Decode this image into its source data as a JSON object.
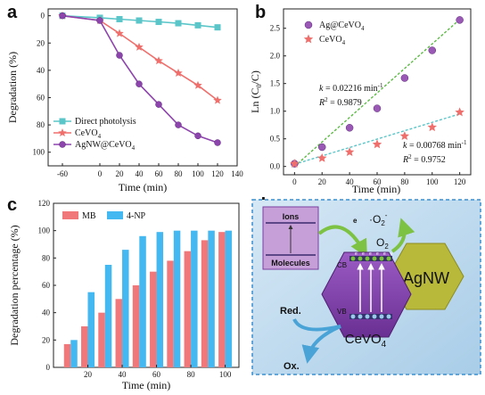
{
  "panels": {
    "a": {
      "letter": "a"
    },
    "b": {
      "letter": "b"
    },
    "c": {
      "letter": "c"
    },
    "d": {
      "letter": "d"
    }
  },
  "chart_data": [
    {
      "id": "a",
      "type": "line",
      "xlabel": "Time (min)",
      "ylabel": "Degradation (%)",
      "x_ticks": [
        -60,
        0,
        20,
        40,
        60,
        80,
        100,
        120,
        140
      ],
      "y_ticks": [
        0,
        20,
        40,
        60,
        80,
        100
      ],
      "y_inverted": true,
      "legend": "bottom-left",
      "series": [
        {
          "name": "Direct photolysis",
          "marker": "square",
          "color": "#5bc6c9",
          "x": [
            -60,
            0,
            20,
            40,
            60,
            80,
            100,
            120
          ],
          "y": [
            0,
            1.5,
            2.5,
            3.5,
            4.5,
            5.5,
            7,
            8.5
          ]
        },
        {
          "name": "CeVO4",
          "marker": "star",
          "color": "#ef6f6c",
          "x": [
            -60,
            0,
            20,
            40,
            60,
            80,
            100,
            120
          ],
          "y": [
            0,
            3.5,
            13,
            23,
            33,
            42,
            51,
            62
          ]
        },
        {
          "name": "AgNW@CeVO4",
          "marker": "circle",
          "color": "#8e44ad",
          "x": [
            -60,
            0,
            20,
            40,
            60,
            80,
            100,
            120
          ],
          "y": [
            0,
            3.5,
            29,
            50,
            65,
            80,
            88,
            93
          ]
        }
      ]
    },
    {
      "id": "b",
      "type": "scatter",
      "xlabel": "Time (min)",
      "ylabel": "Ln (C0/C)",
      "x_ticks": [
        0,
        20,
        40,
        60,
        80,
        100,
        120
      ],
      "y_ticks": [
        0.0,
        0.5,
        1.0,
        1.5,
        2.0,
        2.5
      ],
      "legend": "top-left",
      "series": [
        {
          "name": "Ag@CeVO4",
          "marker": "circle",
          "color": "#9b59b6",
          "x": [
            0,
            20,
            40,
            60,
            80,
            100,
            120
          ],
          "y": [
            0.05,
            0.35,
            0.7,
            1.05,
            1.6,
            2.1,
            2.65
          ],
          "fit": {
            "x": [
              0,
              120
            ],
            "y": [
              0.0,
              2.66
            ],
            "color": "#5dbb46"
          }
        },
        {
          "name": "CeVO4",
          "marker": "star",
          "color": "#ef6f6c",
          "x": [
            0,
            20,
            40,
            60,
            80,
            100,
            120
          ],
          "y": [
            0.05,
            0.15,
            0.26,
            0.4,
            0.55,
            0.71,
            0.98
          ],
          "fit": {
            "x": [
              0,
              120
            ],
            "y": [
              0.04,
              0.95
            ],
            "color": "#5bc6c9"
          }
        }
      ],
      "annotations": [
        {
          "k": "0.02216",
          "r2": "0.9879"
        },
        {
          "k": "0.00768",
          "r2": "0.9752"
        }
      ]
    },
    {
      "id": "c",
      "type": "bar",
      "xlabel": "Time (min)",
      "ylabel": "Degradation percentage (%)",
      "x_ticks": [
        20,
        40,
        60,
        80,
        100
      ],
      "y_ticks": [
        0,
        20,
        40,
        60,
        80,
        100,
        120
      ],
      "ylim": [
        0,
        120
      ],
      "categories": [
        10,
        20,
        30,
        40,
        50,
        60,
        70,
        80,
        90,
        100
      ],
      "legend": "top-left",
      "series": [
        {
          "name": "MB",
          "color": "#f0787a",
          "values": [
            17,
            30,
            40,
            50,
            60,
            70,
            78,
            85,
            93,
            99
          ]
        },
        {
          "name": "4-NP",
          "color": "#44b8f0",
          "values": [
            20,
            55,
            75,
            86,
            96,
            99,
            100,
            100,
            100,
            100
          ]
        }
      ]
    }
  ],
  "labels": {
    "k_prefix": "k = ",
    "k_unit": "min",
    "r2_prefix": "R",
    "exp_minus1": "-1",
    "exp_2": "2",
    "r2_eq": " = "
  },
  "diagram": {
    "ions": "Ions",
    "molecules": "Molecules",
    "o2_top": "·O",
    "o2_sub": "2",
    "o2_sup": "-",
    "o2_mid": "O",
    "o2_mid_sub": "2",
    "e_minus": "e",
    "cb": "CB",
    "vb": "VB",
    "red": "Red.",
    "ox": "Ox.",
    "agnw": "AgNW",
    "cevo4": "CeVO",
    "cevo4_sub": "4",
    "colors": {
      "box": "#bcd9ef",
      "hex": "#7b3fa0",
      "agnw": "#b8b83a",
      "arrow_green": "#7dc242",
      "arrow_blue": "#4aa3d6"
    }
  }
}
